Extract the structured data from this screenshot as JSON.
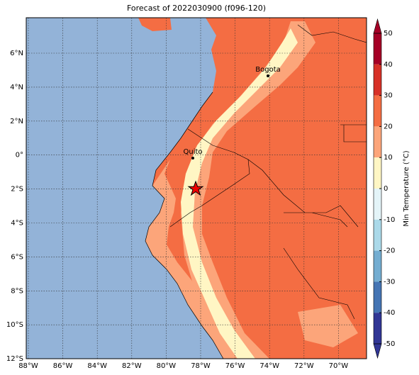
{
  "map": {
    "title": "Forecast of 2022030900 (f096-120)",
    "lon_labels": [
      "88°W",
      "86°W",
      "84°W",
      "82°W",
      "80°W",
      "78°W",
      "76°W",
      "74°W",
      "72°W",
      "70°W"
    ],
    "lat_labels": [
      "6°N",
      "4°N",
      "2°N",
      "0°",
      "2°S",
      "4°S",
      "6°S",
      "8°S",
      "10°S",
      "12°S"
    ],
    "places": [
      {
        "label": "Quito"
      },
      {
        "label": "Bogota"
      }
    ],
    "colorbar": {
      "label": "Min Temperature (°C)",
      "ticks": [
        50,
        40,
        30,
        20,
        10,
        0,
        -10,
        -20,
        -30,
        -40,
        -50
      ],
      "colors": [
        "#a50026",
        "#d73027",
        "#f46d43",
        "#fca57a",
        "#fff6c4",
        "#e4f4f8",
        "#abd9e9",
        "#74add1",
        "#4575b4",
        "#313695"
      ]
    }
  }
}
